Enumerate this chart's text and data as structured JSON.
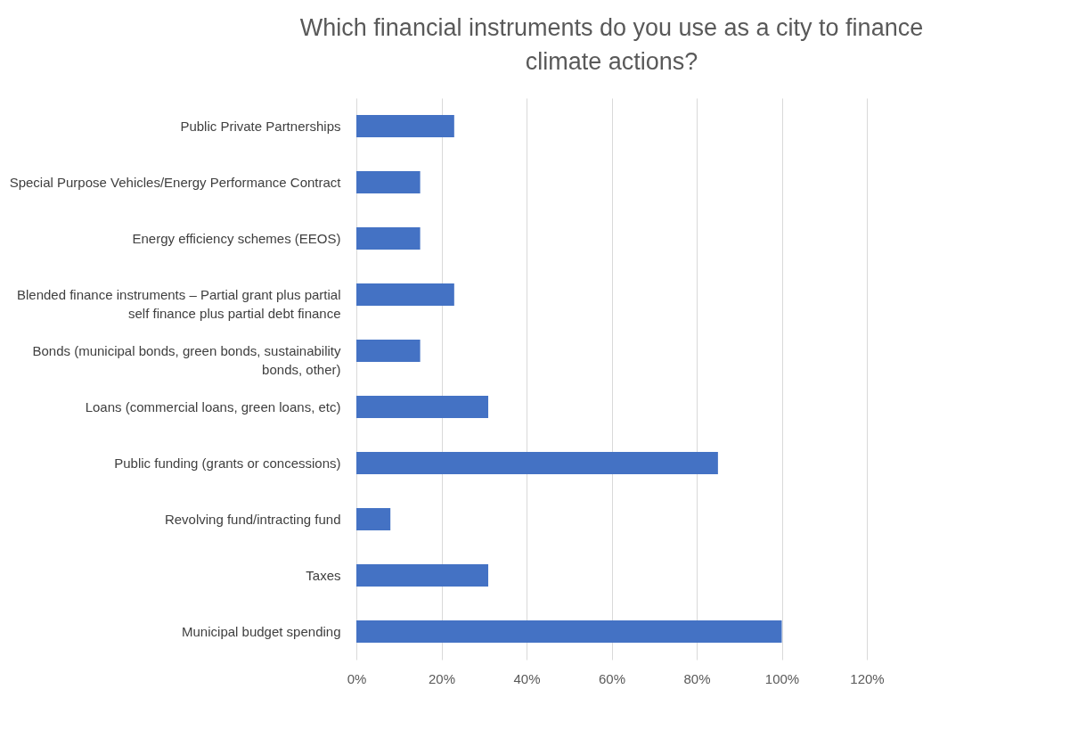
{
  "chart_data": {
    "type": "bar",
    "orientation": "horizontal",
    "title": "Which financial instruments do you use as a city to finance climate actions?",
    "categories": [
      "Public Private Partnerships",
      "Special Purpose Vehicles/Energy Performance Contract",
      "Energy efficiency schemes (EEOS)",
      "Blended finance instruments – Partial grant plus partial self finance plus partial debt finance",
      "Bonds (municipal bonds, green bonds, sustainability bonds, other)",
      "Loans (commercial loans, green loans, etc)",
      "Public funding (grants or concessions)",
      "Revolving fund/intracting fund",
      "Taxes",
      "Municipal budget spending"
    ],
    "values": [
      23,
      15,
      15,
      23,
      15,
      31,
      85,
      8,
      31,
      100
    ],
    "color": "#4472c4",
    "xlim": [
      0,
      120
    ],
    "xticks": [
      {
        "value": 0,
        "label": "0%"
      },
      {
        "value": 20,
        "label": "20%"
      },
      {
        "value": 40,
        "label": "40%"
      },
      {
        "value": 60,
        "label": "60%"
      },
      {
        "value": 80,
        "label": "80%"
      },
      {
        "value": 100,
        "label": "100%"
      },
      {
        "value": 120,
        "label": "120%"
      }
    ],
    "grid": "x"
  }
}
